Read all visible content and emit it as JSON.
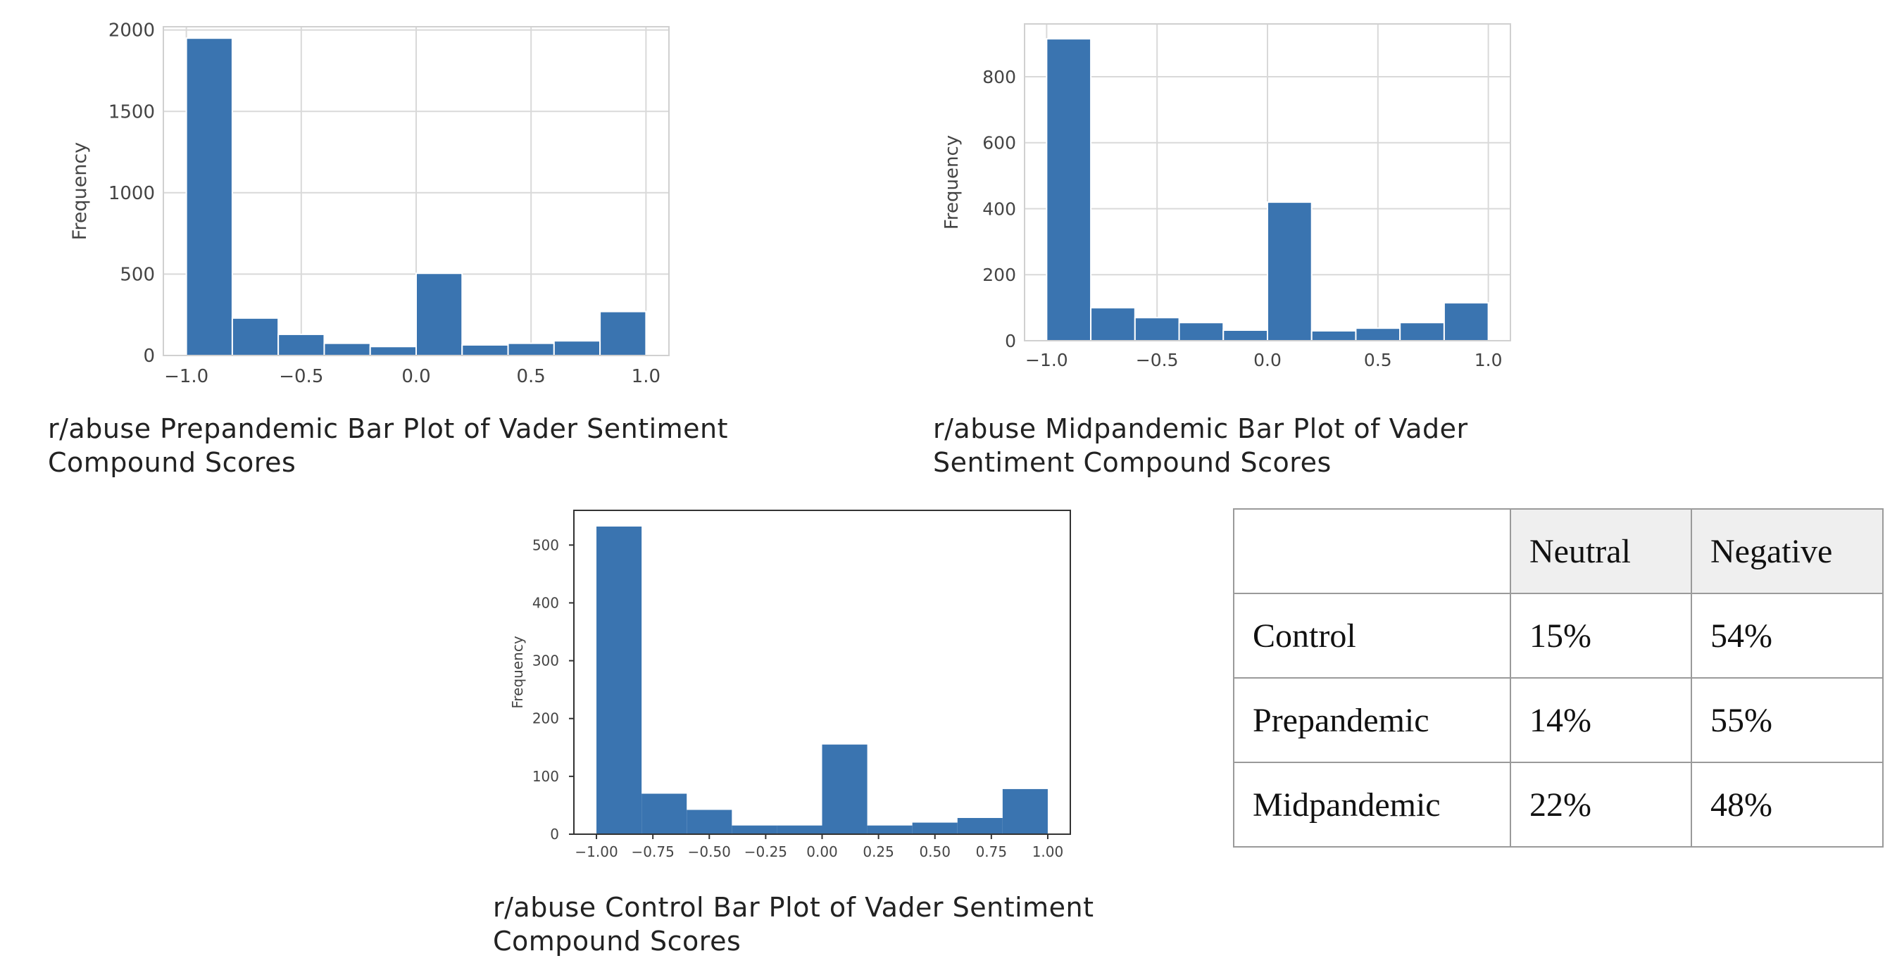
{
  "charts": [
    {
      "caption_lines": [
        "r/abuse Prepandemic Bar Plot of Vader Sentiment",
        "Compound Scores"
      ],
      "ylabel": "Frequency",
      "xticks": [
        "−1.0",
        "−0.5",
        "0.0",
        "0.5",
        "1.0"
      ],
      "yticks": [
        "0",
        "500",
        "1000",
        "1500",
        "2000"
      ]
    },
    {
      "caption_lines": [
        "r/abuse Midpandemic Bar Plot of Vader",
        "Sentiment Compound Scores"
      ],
      "ylabel": "Frequency",
      "xticks": [
        "−1.0",
        "−0.5",
        "0.0",
        "0.5",
        "1.0"
      ],
      "yticks": [
        "0",
        "200",
        "400",
        "600",
        "800"
      ]
    },
    {
      "caption_lines": [
        "r/abuse Control Bar Plot of Vader Sentiment",
        "Compound Scores"
      ],
      "ylabel": "Frequency",
      "xticks": [
        "−1.00",
        "−0.75",
        "−0.50",
        "−0.25",
        "0.00",
        "0.25",
        "0.50",
        "0.75",
        "1.00"
      ],
      "yticks": [
        "0",
        "100",
        "200",
        "300",
        "400",
        "500"
      ]
    }
  ],
  "chart_data": [
    {
      "type": "bar",
      "bin_edges": [
        -1.0,
        -0.8,
        -0.6,
        -0.4,
        -0.2,
        0.0,
        0.2,
        0.4,
        0.6,
        0.8,
        1.0
      ],
      "values": [
        1950,
        230,
        130,
        75,
        55,
        505,
        65,
        75,
        90,
        270
      ],
      "ylabel": "Frequency",
      "xlim": [
        -1.1,
        1.1
      ],
      "ylim": [
        0,
        2020
      ],
      "grid": true,
      "bar_color": "#3a74b0"
    },
    {
      "type": "bar",
      "bin_edges": [
        -1.0,
        -0.8,
        -0.6,
        -0.4,
        -0.2,
        0.0,
        0.2,
        0.4,
        0.6,
        0.8,
        1.0
      ],
      "values": [
        915,
        100,
        70,
        55,
        32,
        420,
        30,
        38,
        55,
        115
      ],
      "ylabel": "Frequency",
      "xlim": [
        -1.1,
        1.1
      ],
      "ylim": [
        0,
        960
      ],
      "grid": true,
      "bar_color": "#3a74b0"
    },
    {
      "type": "bar",
      "bin_edges": [
        -1.0,
        -0.8,
        -0.6,
        -0.4,
        -0.2,
        0.0,
        0.2,
        0.4,
        0.6,
        0.8,
        1.0
      ],
      "values": [
        532,
        70,
        42,
        15,
        15,
        155,
        15,
        20,
        28,
        78
      ],
      "ylabel": "Frequency",
      "xlim": [
        -1.1,
        1.1
      ],
      "ylim": [
        0,
        560
      ],
      "grid": false,
      "bar_color": "#3a74b0"
    }
  ],
  "table": {
    "header": [
      "",
      "Neutral",
      "Negative"
    ],
    "rows": [
      [
        "Control",
        "15%",
        "54%"
      ],
      [
        "Prepandemic",
        "14%",
        "55%"
      ],
      [
        "Midpandemic",
        "22%",
        "48%"
      ]
    ]
  }
}
